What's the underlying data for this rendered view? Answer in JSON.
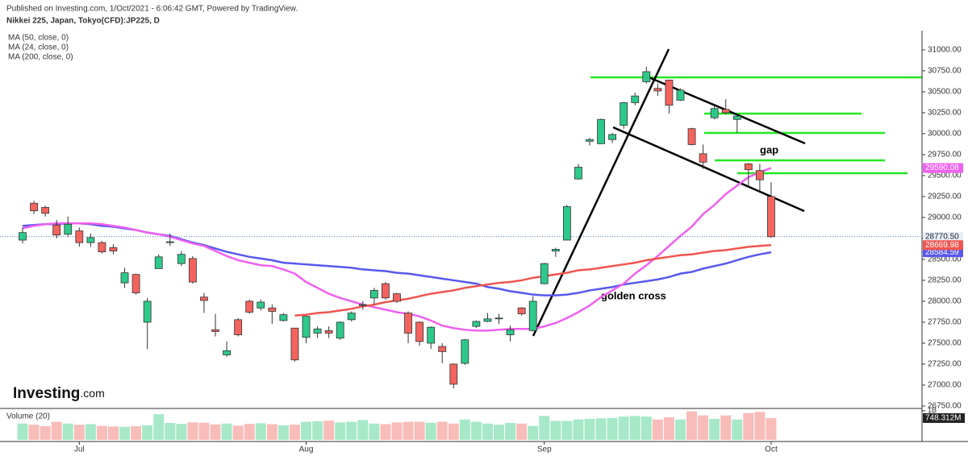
{
  "chart_data": {
    "type": "candlestick",
    "publisher": "Published on Investing.com, 1/Oct/2021 - 6:06:42 GMT, Powered by TradingView.",
    "title": "Nikkei 225, Japan, Tokyo(CFD):JP225, D",
    "logo_main": "Investing",
    "logo_suffix": ".com",
    "categories": [
      null,
      null,
      null,
      null,
      null,
      "Jul",
      null,
      null,
      null,
      null,
      null,
      null,
      null,
      null,
      null,
      null,
      null,
      null,
      null,
      null,
      null,
      null,
      null,
      null,
      null,
      "Aug",
      null,
      null,
      null,
      null,
      null,
      null,
      null,
      null,
      null,
      null,
      null,
      null,
      null,
      null,
      null,
      null,
      null,
      null,
      null,
      null,
      "Sep",
      null,
      null,
      null,
      null,
      null,
      null,
      null,
      null,
      null,
      null,
      null,
      null,
      null,
      null,
      null,
      null,
      null,
      null,
      null,
      "Oct"
    ],
    "open": [
      28730,
      29170,
      29120,
      28910,
      28800,
      28840,
      28700,
      28700,
      28640,
      28220,
      28320,
      27750,
      28390,
      28700,
      28450,
      28510,
      28050,
      27660,
      27360,
      27780,
      28000,
      27920,
      27920,
      27770,
      27680,
      27570,
      27620,
      27650,
      27560,
      27780,
      27950,
      28040,
      28210,
      28090,
      27860,
      27750,
      27500,
      27460,
      27250,
      27260,
      27700,
      27760,
      27790,
      27600,
      27920,
      27650,
      28210,
      28600,
      28730,
      29460,
      29910,
      29880,
      29930,
      30100,
      30370,
      30620,
      30540,
      30640,
      30400,
      30060,
      29760,
      30190,
      30290,
      30170,
      29640,
      29560,
      29250
    ],
    "high": [
      28880,
      29200,
      29140,
      28970,
      29010,
      28880,
      28810,
      28720,
      28680,
      28400,
      28330,
      28040,
      28560,
      28810,
      28600,
      28540,
      28100,
      27850,
      27520,
      27800,
      28020,
      28020,
      27960,
      27860,
      27680,
      27830,
      27700,
      27700,
      27760,
      27880,
      28000,
      28160,
      28230,
      28100,
      27880,
      27760,
      27700,
      27500,
      27260,
      27550,
      27770,
      27860,
      27850,
      27710,
      27930,
      28060,
      28460,
      28640,
      29150,
      29640,
      29950,
      30180,
      30010,
      30380,
      30490,
      30800,
      30600,
      30640,
      30540,
      30070,
      29870,
      30340,
      30410,
      30230,
      29650,
      29640,
      29420
    ],
    "low": [
      28690,
      29040,
      29010,
      28750,
      28770,
      28650,
      28650,
      28570,
      28560,
      28160,
      28080,
      27430,
      28390,
      28660,
      28420,
      28210,
      27860,
      27580,
      27340,
      27580,
      27850,
      27890,
      27730,
      27760,
      27280,
      27500,
      27560,
      27560,
      27540,
      27760,
      27900,
      27960,
      28020,
      27980,
      27500,
      27470,
      27430,
      27260,
      26960,
      27240,
      27680,
      27750,
      27730,
      27520,
      27830,
      27640,
      28200,
      28530,
      28730,
      29450,
      29860,
      29880,
      29890,
      30060,
      30340,
      30600,
      30450,
      30240,
      30390,
      29860,
      29580,
      30170,
      30230,
      30010,
      29360,
      29320,
      28760
    ],
    "close": [
      28820,
      29080,
      29050,
      28790,
      28920,
      28700,
      28760,
      28590,
      28600,
      28340,
      28100,
      28000,
      28530,
      28710,
      28560,
      28230,
      28010,
      27640,
      27410,
      27600,
      27870,
      27990,
      27880,
      27840,
      27300,
      27820,
      27670,
      27620,
      27750,
      27860,
      27960,
      28130,
      28040,
      28000,
      27620,
      27520,
      27690,
      27400,
      27010,
      27540,
      27760,
      27790,
      27800,
      27660,
      27850,
      28000,
      28450,
      28620,
      29130,
      29600,
      29930,
      30170,
      29990,
      30370,
      30450,
      30740,
      30510,
      30340,
      30520,
      29870,
      29660,
      30300,
      30250,
      30210,
      29570,
      29450,
      28770.5
    ],
    "close_label": "28770.50",
    "up_color": "#2ec98a",
    "down_color": "#f4645f",
    "series": [
      {
        "name": "MA (50, close, 0)",
        "color": "#5858ee",
        "values": [
          28900,
          28910,
          28920,
          28920,
          28930,
          28930,
          28920,
          28900,
          28890,
          28870,
          28850,
          28820,
          28800,
          28780,
          28740,
          28700,
          28670,
          28630,
          28590,
          28560,
          28530,
          28510,
          28490,
          28460,
          28450,
          28440,
          28430,
          28420,
          28410,
          28400,
          28380,
          28370,
          28360,
          28340,
          28330,
          28310,
          28290,
          28270,
          28250,
          28230,
          28210,
          28170,
          28150,
          28120,
          28100,
          28080,
          28070,
          28070,
          28080,
          28100,
          28130,
          28150,
          28170,
          28200,
          28220,
          28240,
          28260,
          28290,
          28330,
          28350,
          28390,
          28420,
          28450,
          28490,
          28530,
          28560,
          28584.59
        ]
      },
      {
        "name": "MA (24, close, 0)",
        "color": "#f060f0",
        "values": [
          28870,
          28900,
          28920,
          28930,
          28930,
          28930,
          28930,
          28920,
          28900,
          28880,
          28850,
          28820,
          28800,
          28770,
          28730,
          28690,
          28660,
          28600,
          28540,
          28490,
          28460,
          28430,
          28420,
          28380,
          28330,
          28230,
          28160,
          28090,
          28040,
          28000,
          27960,
          27930,
          27900,
          27870,
          27850,
          27820,
          27770,
          27710,
          27680,
          27660,
          27650,
          27650,
          27660,
          27670,
          27670,
          27670,
          27700,
          27740,
          27800,
          27870,
          27950,
          28050,
          28130,
          28210,
          28330,
          28430,
          28540,
          28660,
          28780,
          28890,
          29040,
          29150,
          29280,
          29380,
          29480,
          29540,
          29590.08
        ]
      },
      {
        "name": "MA (200, close, 0)",
        "color": "#f0554f",
        "values": [
          null,
          null,
          null,
          null,
          null,
          null,
          null,
          null,
          null,
          null,
          null,
          null,
          null,
          null,
          null,
          null,
          null,
          null,
          null,
          null,
          null,
          null,
          null,
          null,
          27830,
          27840,
          27860,
          27870,
          27890,
          27910,
          27940,
          27960,
          27990,
          28010,
          28030,
          28060,
          28090,
          28110,
          28130,
          28160,
          28180,
          28200,
          28220,
          28230,
          28250,
          28280,
          28300,
          28320,
          28340,
          28370,
          28380,
          28400,
          28420,
          28440,
          28460,
          28490,
          28510,
          28530,
          28550,
          28560,
          28580,
          28600,
          28610,
          28630,
          28650,
          28660,
          28669.98
        ]
      }
    ],
    "ylim": [
      26740,
      31230
    ],
    "yticks": [
      {
        "value": 26750,
        "label": "26750.00"
      },
      {
        "value": 27000,
        "label": "27000.00"
      },
      {
        "value": 27250,
        "label": "27250.00"
      },
      {
        "value": 27500,
        "label": "27500.00"
      },
      {
        "value": 27750,
        "label": "27750.00"
      },
      {
        "value": 28000,
        "label": "28000.00"
      },
      {
        "value": 28250,
        "label": "28250.00"
      },
      {
        "value": 28500,
        "label": "28500.00"
      },
      {
        "value": 28750,
        "label": "28750.00"
      },
      {
        "value": 29000,
        "label": "29000.00"
      },
      {
        "value": 29250,
        "label": "29250.00"
      },
      {
        "value": 29500,
        "label": "29500.00"
      },
      {
        "value": 29750,
        "label": "29750.00"
      },
      {
        "value": 30000,
        "label": "30000.00"
      },
      {
        "value": 30250,
        "label": "30250.00"
      },
      {
        "value": 30500,
        "label": "30500.00"
      },
      {
        "value": 30750,
        "label": "30750.00"
      },
      {
        "value": 31000,
        "label": "31000.00"
      }
    ],
    "volume": {
      "name": "Volume (20)",
      "values": [
        560,
        520,
        470,
        620,
        560,
        520,
        540,
        480,
        460,
        450,
        470,
        500,
        880,
        580,
        550,
        600,
        590,
        530,
        560,
        490,
        550,
        570,
        540,
        500,
        520,
        620,
        640,
        660,
        600,
        620,
        680,
        560,
        540,
        600,
        620,
        620,
        590,
        620,
        560,
        700,
        620,
        560,
        520,
        580,
        560,
        480,
        820,
        650,
        650,
        700,
        720,
        740,
        750,
        800,
        820,
        800,
        700,
        780,
        700,
        980,
        840,
        720,
        840,
        700,
        920,
        960,
        748.312
      ],
      "last_label": "748.312M",
      "up_color": "#a6e8c8",
      "down_color": "#f8bcb9",
      "ylim": [
        0,
        1050
      ],
      "yticks": [
        {
          "value": 1000,
          "label": "1B"
        }
      ]
    },
    "annotations": [
      "gap",
      "golden cross"
    ]
  }
}
